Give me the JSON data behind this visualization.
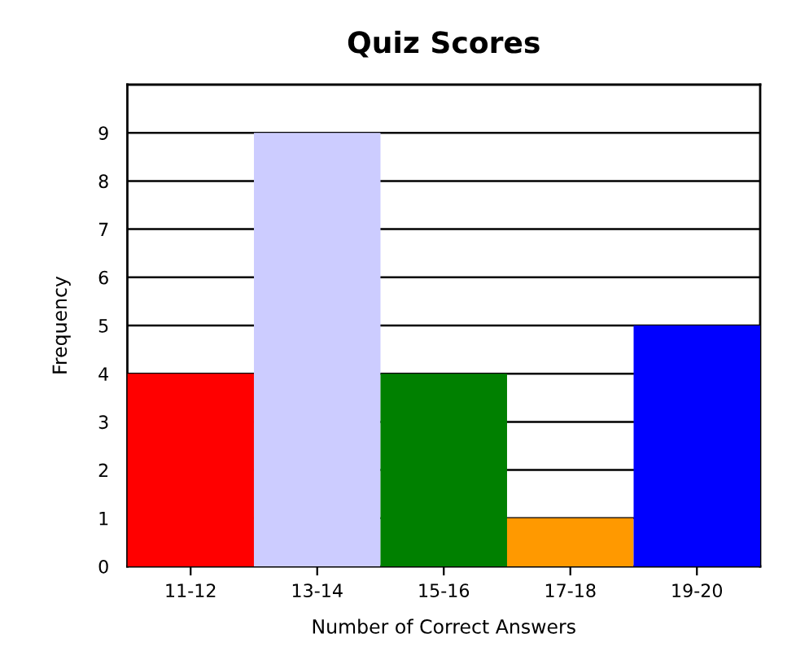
{
  "chart_data": {
    "type": "bar",
    "title": "Quiz Scores",
    "xlabel": "Number of Correct Answers",
    "ylabel": "Frequency",
    "categories": [
      "11-12",
      "13-14",
      "15-16",
      "17-18",
      "19-20"
    ],
    "values": [
      4,
      9,
      4,
      1,
      5
    ],
    "colors": [
      "#ff0000",
      "#ccccff",
      "#008000",
      "#ff9900",
      "#0000ff"
    ],
    "ylim": [
      0,
      10
    ],
    "yticks": [
      0,
      1,
      2,
      3,
      4,
      5,
      6,
      7,
      8,
      9
    ],
    "grid": "y"
  }
}
